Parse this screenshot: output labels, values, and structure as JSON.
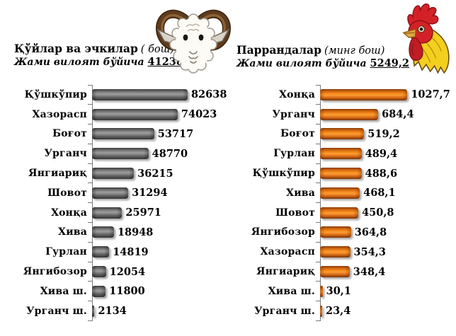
{
  "page": {
    "background": "#ffffff",
    "text_color": "#000000",
    "axis_color": "#7a7a7a"
  },
  "chart_data": [
    {
      "type": "bar",
      "orientation": "horizontal",
      "icon": "ram-icon",
      "title_main": "Қўйлар ва эчкилар",
      "title_unit": "( бош)",
      "subtitle_prefix": "Жами вилоят бўйича",
      "total_label": "412383",
      "title": "Қўйлар ва эчкилар ( бош)",
      "subtitle": "Жами вилоят бўйича 412383",
      "bar_color": "#6e6e6e",
      "grid": false,
      "legend": false,
      "xlim": [
        0,
        90000
      ],
      "categories": [
        "Қўшкўпир",
        "Хазорасп",
        "Боғот",
        "Урганч",
        "Янгиариқ",
        "Шовот",
        "Хонқа",
        "Хива",
        "Гурлан",
        "Янгибозор",
        "Хива ш.",
        "Урганч ш."
      ],
      "values": [
        82638,
        74023,
        53717,
        48770,
        36215,
        31294,
        25971,
        18948,
        14819,
        12054,
        11800,
        2134
      ],
      "value_labels": [
        "82638",
        "74023",
        "53717",
        "48770",
        "36215",
        "31294",
        "25971",
        "18948",
        "14819",
        "12054",
        "11800",
        "2134"
      ]
    },
    {
      "type": "bar",
      "orientation": "horizontal",
      "icon": "rooster-icon",
      "title_main": "Паррандалар",
      "title_unit": "(минг бош)",
      "subtitle_prefix": "Жами вилоят бўйича",
      "total_label": "5249,2",
      "title": "Паррандалар (минг бош)",
      "subtitle": "Жами вилоят бўйича 5249,2",
      "bar_color": "#e87d1e",
      "grid": false,
      "legend": false,
      "xlim": [
        0,
        1100
      ],
      "categories": [
        "Хонқа",
        "Урганч",
        "Боғот",
        "Гурлан",
        "Қўшкўпир",
        "Хива",
        "Шовот",
        "Янгибозор",
        "Хазорасп",
        "Янгиариқ",
        "Хива ш.",
        "Урганч ш."
      ],
      "values": [
        1027.7,
        684.4,
        519.2,
        489.4,
        488.6,
        468.1,
        450.8,
        364.8,
        354.3,
        348.4,
        30.1,
        23.4
      ],
      "value_labels": [
        "1027,7",
        "684,4",
        "519,2",
        "489,4",
        "488,6",
        "468,1",
        "450,8",
        "364,8",
        "354,3",
        "348,4",
        "30,1",
        "23,4"
      ]
    }
  ]
}
